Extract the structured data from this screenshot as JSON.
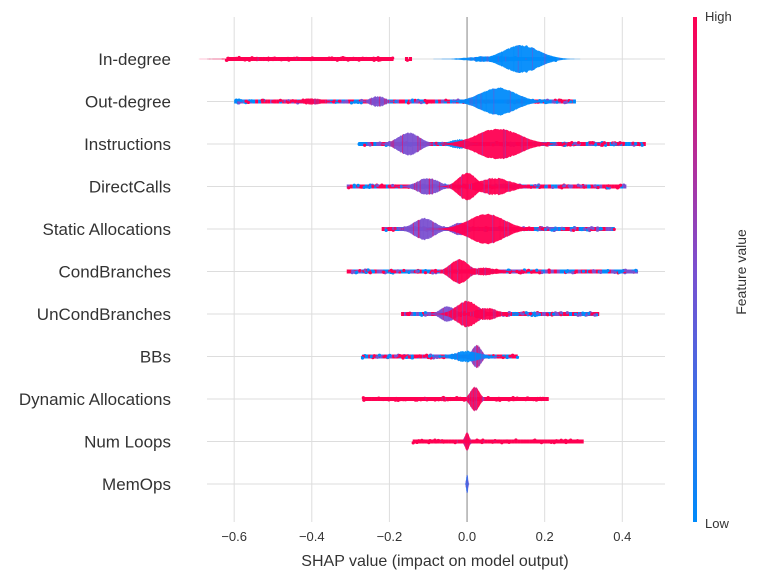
{
  "chart_data": {
    "type": "scatter",
    "subtype": "shap-violin-summary",
    "xlabel": "SHAP value (impact on model output)",
    "xlim": [
      -0.67,
      0.51
    ],
    "x_ticks": [
      -0.6,
      -0.4,
      -0.2,
      0.0,
      0.2,
      0.4
    ],
    "x_tick_labels": [
      "−0.6",
      "−0.4",
      "−0.2",
      "0.0",
      "0.2",
      "0.4"
    ],
    "grid": true,
    "colorbar": {
      "title": "Feature value",
      "high_label": "High",
      "low_label": "Low",
      "low_color": "#008bfb",
      "mid_color": "#7a50d0",
      "high_color": "#ff0052"
    },
    "features": [
      {
        "name": "In-degree",
        "min": -0.62,
        "max": 0.23,
        "bodies": [
          {
            "center": -0.52,
            "width": 0.14,
            "height": 0.12,
            "color": "high"
          },
          {
            "center": 0.14,
            "width": 0.1,
            "height": 0.9,
            "color": "low"
          },
          {
            "center": 0.07,
            "width": 0.12,
            "height": 0.2,
            "color": "low"
          }
        ],
        "strips": [
          {
            "from": -0.62,
            "to": -0.19,
            "color": "high",
            "dots": 60
          },
          {
            "from": -0.16,
            "to": -0.15,
            "color": "high",
            "dots": 1
          },
          {
            "from": 0.02,
            "to": 0.23,
            "color": "low",
            "dots": 20
          }
        ]
      },
      {
        "name": "Out-degree",
        "min": -0.6,
        "max": 0.28,
        "bodies": [
          {
            "center": -0.4,
            "width": 0.06,
            "height": 0.2,
            "color": "high"
          },
          {
            "center": -0.23,
            "width": 0.04,
            "height": 0.35,
            "color": "mid"
          },
          {
            "center": 0.08,
            "width": 0.1,
            "height": 0.9,
            "color": "low"
          }
        ],
        "strips": [
          {
            "from": -0.6,
            "to": 0.28,
            "color": "mix",
            "dots": 120
          }
        ]
      },
      {
        "name": "Instructions",
        "min": -0.28,
        "max": 0.46,
        "bodies": [
          {
            "center": -0.15,
            "width": 0.06,
            "height": 0.75,
            "color": "mid"
          },
          {
            "center": -0.02,
            "width": 0.05,
            "height": 0.3,
            "color": "low"
          },
          {
            "center": 0.08,
            "width": 0.12,
            "height": 1.0,
            "color": "high"
          }
        ],
        "strips": [
          {
            "from": -0.28,
            "to": 0.46,
            "color": "mix",
            "dots": 120
          }
        ]
      },
      {
        "name": "DirectCalls",
        "min": -0.31,
        "max": 0.41,
        "bodies": [
          {
            "center": -0.1,
            "width": 0.06,
            "height": 0.55,
            "color": "mid"
          },
          {
            "center": 0.0,
            "width": 0.05,
            "height": 0.9,
            "color": "high"
          },
          {
            "center": 0.07,
            "width": 0.09,
            "height": 0.55,
            "color": "high"
          }
        ],
        "strips": [
          {
            "from": -0.31,
            "to": 0.41,
            "color": "mix",
            "dots": 120
          }
        ]
      },
      {
        "name": "Static Allocations",
        "min": -0.22,
        "max": 0.38,
        "bodies": [
          {
            "center": -0.11,
            "width": 0.06,
            "height": 0.7,
            "color": "mid"
          },
          {
            "center": -0.02,
            "width": 0.04,
            "height": 0.4,
            "color": "mid"
          },
          {
            "center": 0.05,
            "width": 0.1,
            "height": 1.0,
            "color": "high"
          }
        ],
        "strips": [
          {
            "from": -0.22,
            "to": 0.38,
            "color": "mix",
            "dots": 110
          }
        ]
      },
      {
        "name": "CondBranches",
        "min": -0.31,
        "max": 0.44,
        "bodies": [
          {
            "center": -0.02,
            "width": 0.05,
            "height": 0.8,
            "color": "high"
          },
          {
            "center": 0.04,
            "width": 0.08,
            "height": 0.25,
            "color": "high"
          }
        ],
        "strips": [
          {
            "from": -0.31,
            "to": 0.44,
            "color": "mix",
            "dots": 120
          }
        ]
      },
      {
        "name": "UnCondBranches",
        "min": -0.17,
        "max": 0.34,
        "bodies": [
          {
            "center": -0.05,
            "width": 0.04,
            "height": 0.5,
            "color": "mid"
          },
          {
            "center": 0.0,
            "width": 0.06,
            "height": 0.85,
            "color": "high"
          },
          {
            "center": 0.05,
            "width": 0.06,
            "height": 0.4,
            "color": "high"
          }
        ],
        "strips": [
          {
            "from": -0.17,
            "to": 0.34,
            "color": "mix",
            "dots": 100
          }
        ]
      },
      {
        "name": "BBs",
        "min": -0.27,
        "max": 0.13,
        "bodies": [
          {
            "center": 0.025,
            "width": 0.025,
            "height": 0.75,
            "color": "mid"
          },
          {
            "center": 0.0,
            "width": 0.07,
            "height": 0.35,
            "color": "low"
          }
        ],
        "strips": [
          {
            "from": -0.27,
            "to": 0.13,
            "color": "mix",
            "dots": 90
          }
        ]
      },
      {
        "name": "Dynamic Allocations",
        "min": -0.27,
        "max": 0.21,
        "bodies": [
          {
            "center": 0.02,
            "width": 0.025,
            "height": 0.8,
            "color": "high"
          },
          {
            "center": -0.05,
            "width": 0.08,
            "height": 0.12,
            "color": "high"
          }
        ],
        "strips": [
          {
            "from": -0.27,
            "to": 0.21,
            "color": "high",
            "dots": 90
          }
        ]
      },
      {
        "name": "Num Loops",
        "min": -0.14,
        "max": 0.3,
        "bodies": [
          {
            "center": 0.0,
            "width": 0.012,
            "height": 0.6,
            "color": "high"
          },
          {
            "center": 0.0,
            "width": 0.09,
            "height": 0.1,
            "color": "high"
          }
        ],
        "strips": [
          {
            "from": -0.14,
            "to": 0.3,
            "color": "high",
            "dots": 70
          }
        ]
      },
      {
        "name": "MemOps",
        "min": -0.005,
        "max": 0.005,
        "bodies": [
          {
            "center": 0.0,
            "width": 0.004,
            "height": 0.6,
            "color": "low"
          }
        ],
        "strips": []
      }
    ]
  }
}
